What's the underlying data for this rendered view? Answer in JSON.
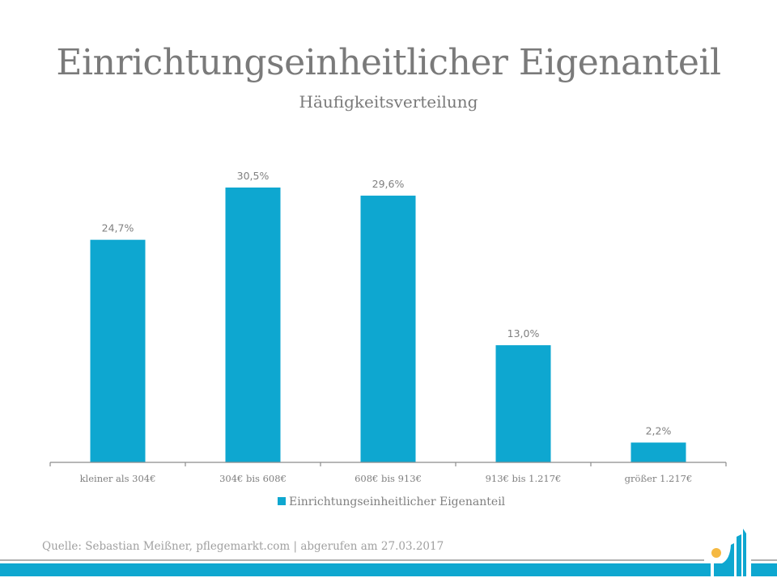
{
  "chart_data": {
    "type": "bar",
    "title": "Einrichtungseinheitlicher Eigenanteil",
    "subtitle": "Häufigkeitsverteilung",
    "categories": [
      "kleiner als 304€",
      "304€ bis 608€",
      "608€ bis 913€",
      "913€ bis 1.217€",
      "größer 1.217€"
    ],
    "series": [
      {
        "name": "Einrichtungseinheitlicher Eigenanteil",
        "values": [
          24.7,
          30.5,
          29.6,
          13.0,
          2.2
        ],
        "labels": [
          "24,7%",
          "30,5%",
          "29,6%",
          "13,0%",
          "2,2%"
        ],
        "color": "#0ea7d0"
      }
    ],
    "xlabel": "",
    "ylabel": "",
    "ylim": [
      0,
      32
    ],
    "grid": false,
    "legend_position": "bottom"
  },
  "footer": {
    "source": "Quelle: Sebastian Meißner, pflegemarkt.com | abgerufen am 27.03.2017",
    "logo_icon": "pflegemarkt-logo-icon",
    "accent_color": "#0ea7d0",
    "logo_dot_color": "#f5b942"
  }
}
